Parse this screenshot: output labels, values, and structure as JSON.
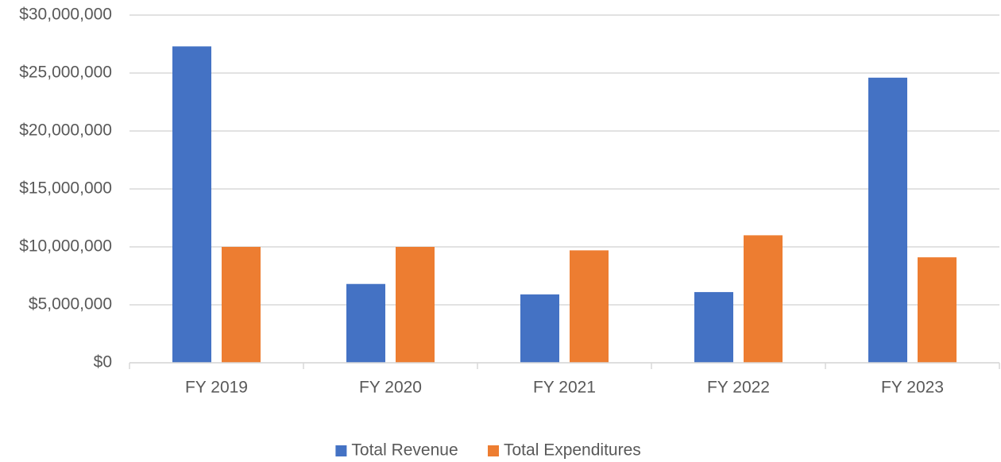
{
  "chart_data": {
    "type": "bar",
    "categories": [
      "FY 2019",
      "FY 2020",
      "FY 2021",
      "FY 2022",
      "FY 2023"
    ],
    "series": [
      {
        "name": "Total Revenue",
        "color": "#4472c4",
        "values": [
          27300000,
          6800000,
          5900000,
          6100000,
          24600000
        ]
      },
      {
        "name": "Total Expenditures",
        "color": "#ed7d31",
        "values": [
          10000000,
          10000000,
          9700000,
          11000000,
          9100000
        ]
      }
    ],
    "ylim": [
      0,
      30000000
    ],
    "yticks": [
      {
        "value": 0,
        "label": "$0"
      },
      {
        "value": 5000000,
        "label": "$5,000,000"
      },
      {
        "value": 10000000,
        "label": "$10,000,000"
      },
      {
        "value": 15000000,
        "label": "$15,000,000"
      },
      {
        "value": 20000000,
        "label": "$20,000,000"
      },
      {
        "value": 25000000,
        "label": "$25,000,000"
      },
      {
        "value": 30000000,
        "label": "$30,000,000"
      }
    ],
    "grid": true,
    "legend": "bottom"
  }
}
